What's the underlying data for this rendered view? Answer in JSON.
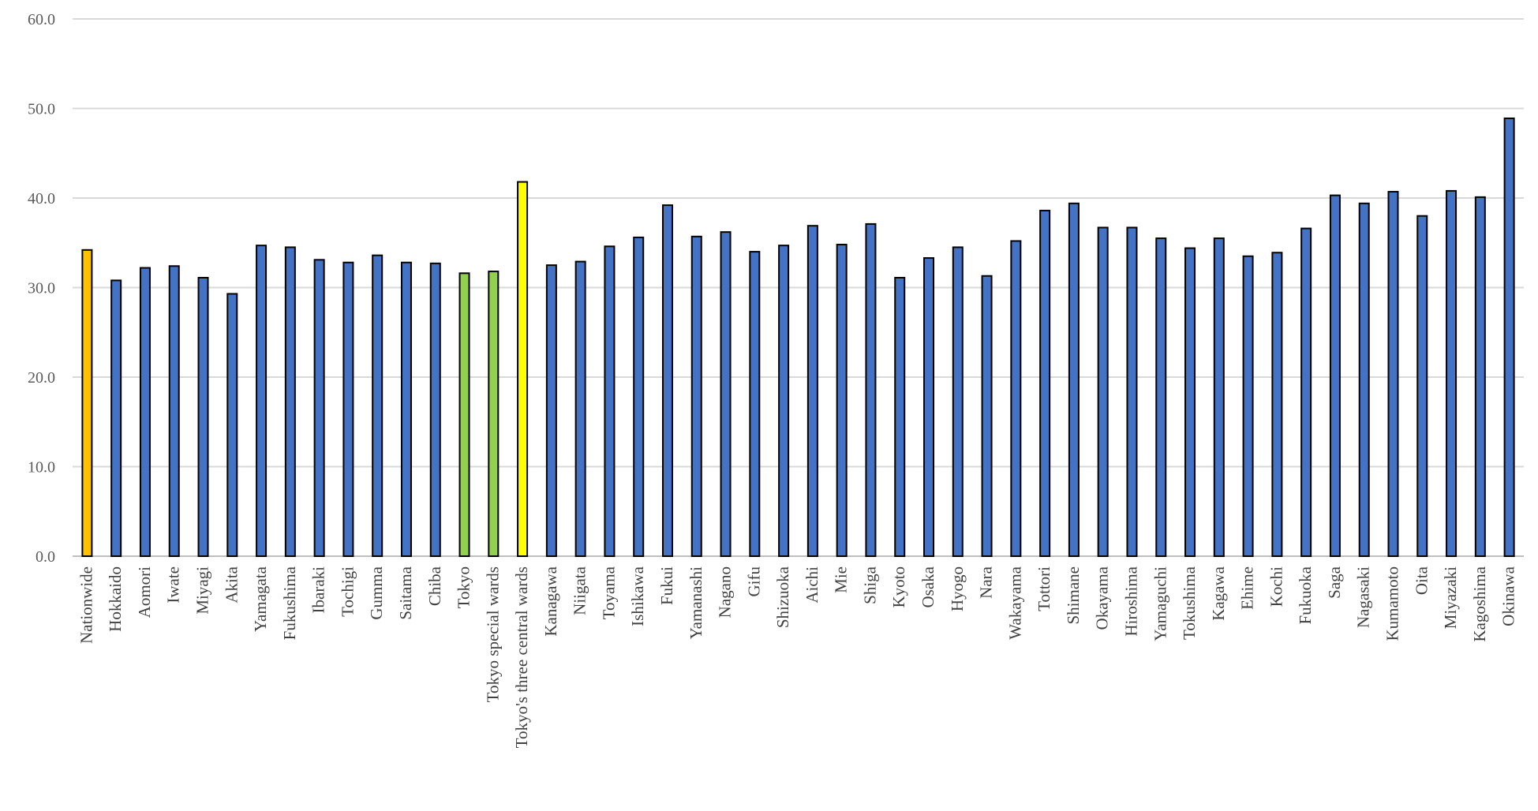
{
  "chart_data": {
    "type": "bar",
    "title": "",
    "xlabel": "",
    "ylabel": "",
    "ylim": [
      0,
      60
    ],
    "yticks": [
      "0.0",
      "10.0",
      "20.0",
      "30.0",
      "40.0",
      "50.0",
      "60.0"
    ],
    "grid": true,
    "legend": "none",
    "categories": [
      "Nationwide",
      "Hokkaido",
      "Aomori",
      "Iwate",
      "Miyagi",
      "Akita",
      "Yamagata",
      "Fukushima",
      "Ibaraki",
      "Tochigi",
      "Gumma",
      "Saitama",
      "Chiba",
      "Tokyo",
      "Tokyo special wards",
      "Tokyo's three central wards",
      "Kanagawa",
      "Niigata",
      "Toyama",
      "Ishikawa",
      "Fukui",
      "Yamanashi",
      "Nagano",
      "Gifu",
      "Shizuoka",
      "Aichi",
      "Mie",
      "Shiga",
      "Kyoto",
      "Osaka",
      "Hyogo",
      "Nara",
      "Wakayama",
      "Tottori",
      "Shimane",
      "Okayama",
      "Hiroshima",
      "Yamaguchi",
      "Tokushima",
      "Kagawa",
      "Ehime",
      "Kochi",
      "Fukuoka",
      "Saga",
      "Nagasaki",
      "Kumamoto",
      "Oita",
      "Miyazaki",
      "Kagoshima",
      "Okinawa"
    ],
    "values": [
      34.2,
      30.8,
      32.2,
      32.4,
      31.1,
      29.3,
      34.7,
      34.5,
      33.1,
      32.8,
      33.6,
      32.8,
      32.7,
      31.6,
      31.8,
      41.8,
      32.5,
      32.9,
      34.6,
      35.6,
      39.2,
      35.7,
      36.2,
      34.0,
      34.7,
      36.9,
      34.8,
      37.1,
      31.1,
      33.3,
      34.5,
      31.3,
      35.2,
      38.6,
      39.4,
      36.7,
      36.7,
      35.5,
      34.4,
      35.5,
      33.5,
      33.9,
      36.6,
      40.3,
      39.4,
      40.7,
      38.0,
      40.8,
      40.1,
      48.9
    ],
    "colors": {
      "default": "#4472C4",
      "Nationwide": "#FFC000",
      "Tokyo": "#92D050",
      "Tokyo special wards": "#92D050",
      "Tokyo's three central wards": "#FFFF00",
      "bar_outline": "#000000",
      "grid": "#D9D9D9"
    }
  }
}
